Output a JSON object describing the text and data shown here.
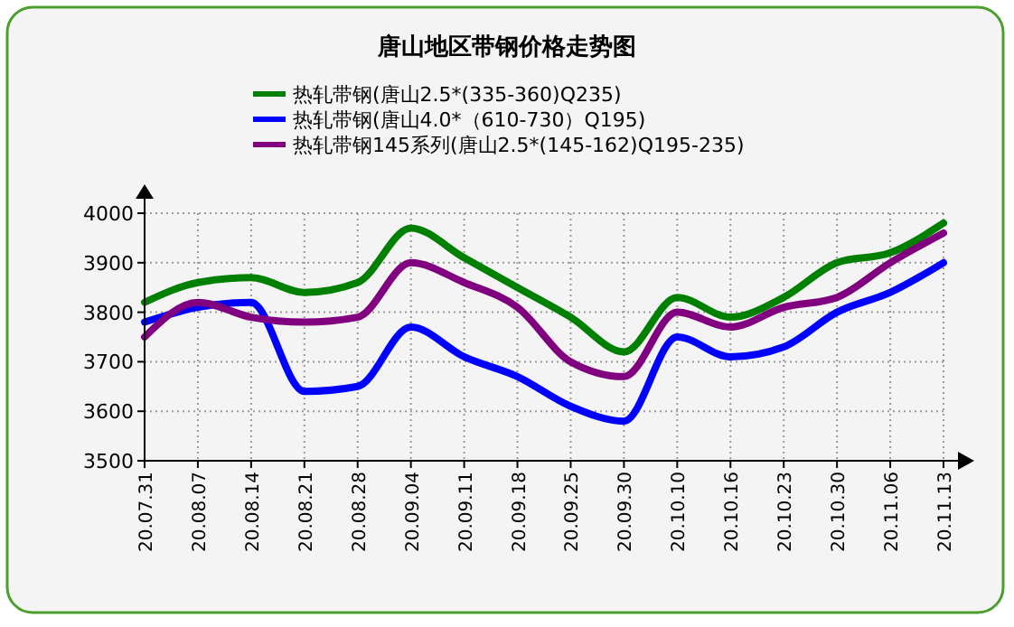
{
  "chart_data": {
    "type": "line",
    "title": "唐山地区带钢价格走势图",
    "categories": [
      "20.07.31",
      "20.08.07",
      "20.08.14",
      "20.08.21",
      "20.08.28",
      "20.09.04",
      "20.09.11",
      "20.09.18",
      "20.09.25",
      "20.09.30",
      "20.10.10",
      "20.10.16",
      "20.10.23",
      "20.10.30",
      "20.11.06",
      "20.11.13"
    ],
    "series": [
      {
        "name": "热轧带钢(唐山2.5*(335-360)Q235)",
        "color": "#008000",
        "values": [
          3820,
          3860,
          3870,
          3840,
          3860,
          3970,
          3910,
          3850,
          3790,
          3720,
          3830,
          3790,
          3830,
          3900,
          3920,
          3980
        ]
      },
      {
        "name": "热轧带钢(唐山4.0*（610-730）Q195)",
        "color": "#0000ff",
        "values": [
          3780,
          3810,
          3820,
          3640,
          3650,
          3770,
          3710,
          3670,
          3610,
          3580,
          3750,
          3710,
          3730,
          3800,
          3840,
          3900
        ]
      },
      {
        "name": "热轧带钢145系列(唐山2.5*(145-162)Q195-235)",
        "color": "#800080",
        "values": [
          3750,
          3820,
          3790,
          3780,
          3790,
          3900,
          3860,
          3810,
          3700,
          3670,
          3800,
          3770,
          3810,
          3830,
          3900,
          3960
        ]
      }
    ],
    "ylim": [
      3500,
      4000
    ],
    "yticks": [
      3500,
      3600,
      3700,
      3800,
      3900,
      4000
    ],
    "grid": true,
    "legend": "top",
    "marker": "none",
    "line_style": "solid"
  }
}
